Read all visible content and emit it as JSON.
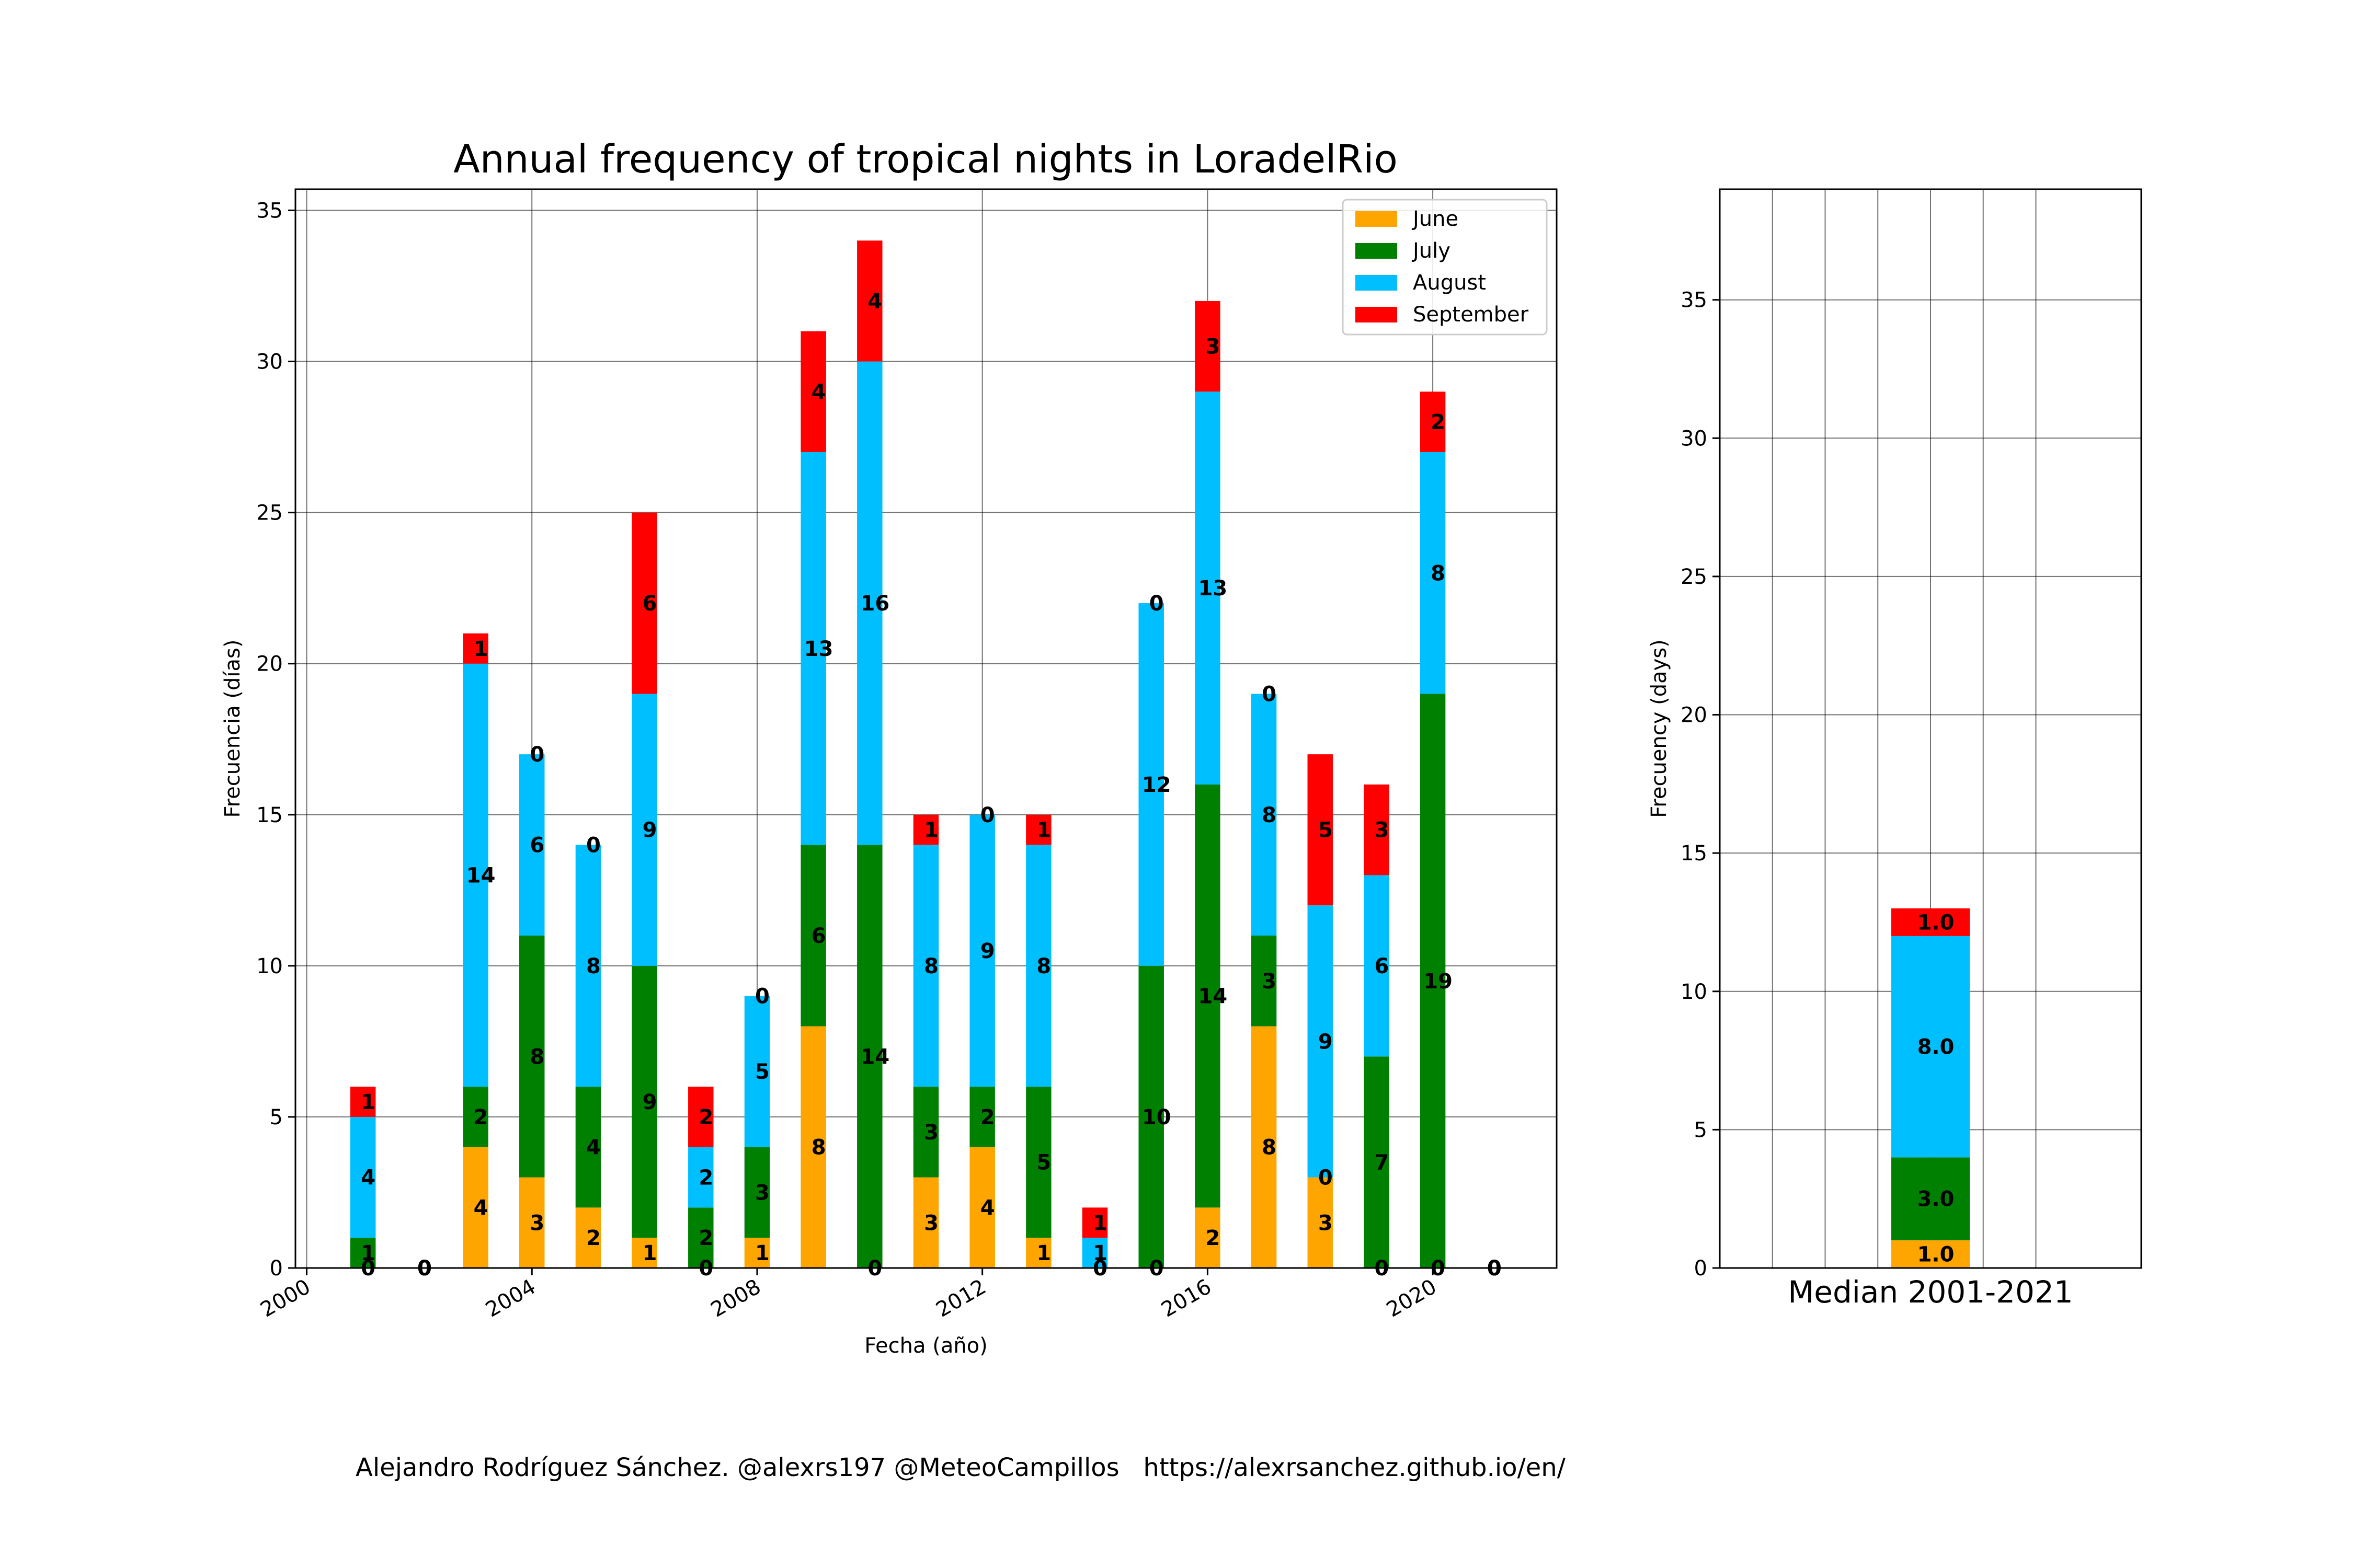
{
  "chart_data": [
    {
      "type": "bar",
      "stacked": true,
      "title": "Annual frequency of tropical nights in LoradelRio",
      "xlabel": "Fecha (año)",
      "ylabel": "Frecuencia (días)",
      "x": [
        2001,
        2002,
        2003,
        2004,
        2005,
        2006,
        2007,
        2008,
        2009,
        2010,
        2011,
        2012,
        2013,
        2014,
        2015,
        2016,
        2017,
        2018,
        2019,
        2020,
        2021
      ],
      "xticks": [
        "2000",
        "2004",
        "2008",
        "2012",
        "2016",
        "2020"
      ],
      "xlim": [
        1999.8,
        2022.2
      ],
      "ylim": [
        0,
        35.7
      ],
      "yticks": [
        0,
        5,
        10,
        15,
        20,
        25,
        30,
        35
      ],
      "grid": true,
      "legend_position": "top-right",
      "series": [
        {
          "name": "June",
          "color": "#FFA500",
          "values": [
            0,
            0,
            4,
            3,
            2,
            1,
            0,
            1,
            8,
            0,
            3,
            4,
            1,
            0,
            0,
            2,
            8,
            3,
            0,
            0,
            0
          ]
        },
        {
          "name": "July",
          "color": "#008000",
          "values": [
            1,
            0,
            2,
            8,
            4,
            9,
            2,
            3,
            6,
            14,
            3,
            2,
            5,
            0,
            10,
            14,
            3,
            0,
            7,
            19,
            0
          ]
        },
        {
          "name": "August",
          "color": "#00BFFF",
          "values": [
            4,
            0,
            14,
            6,
            8,
            9,
            2,
            5,
            13,
            16,
            8,
            9,
            8,
            1,
            12,
            13,
            8,
            9,
            6,
            8,
            0
          ]
        },
        {
          "name": "September",
          "color": "#FF0000",
          "values": [
            1,
            0,
            1,
            0,
            0,
            6,
            2,
            0,
            4,
            4,
            1,
            0,
            1,
            1,
            0,
            3,
            0,
            5,
            3,
            2,
            0
          ]
        }
      ]
    },
    {
      "type": "bar",
      "stacked": true,
      "xlabel": "Median 2001-2021",
      "ylabel": "Frecuency (days)",
      "ylim": [
        0,
        39
      ],
      "yticks": [
        0,
        5,
        10,
        15,
        20,
        25,
        30,
        35
      ],
      "grid": true,
      "series": [
        {
          "name": "June",
          "color": "#FFA500",
          "values": [
            1.0
          ],
          "label": "1.0"
        },
        {
          "name": "July",
          "color": "#008000",
          "values": [
            3.0
          ],
          "label": "3.0"
        },
        {
          "name": "August",
          "color": "#00BFFF",
          "values": [
            8.0
          ],
          "label": "8.0"
        },
        {
          "name": "September",
          "color": "#FF0000",
          "values": [
            1.0
          ],
          "label": "1.0"
        }
      ]
    }
  ],
  "footer": "Alejandro Rodríguez Sánchez. @alexrs197 @MeteoCampillos   https://alexrsanchez.github.io/en/"
}
